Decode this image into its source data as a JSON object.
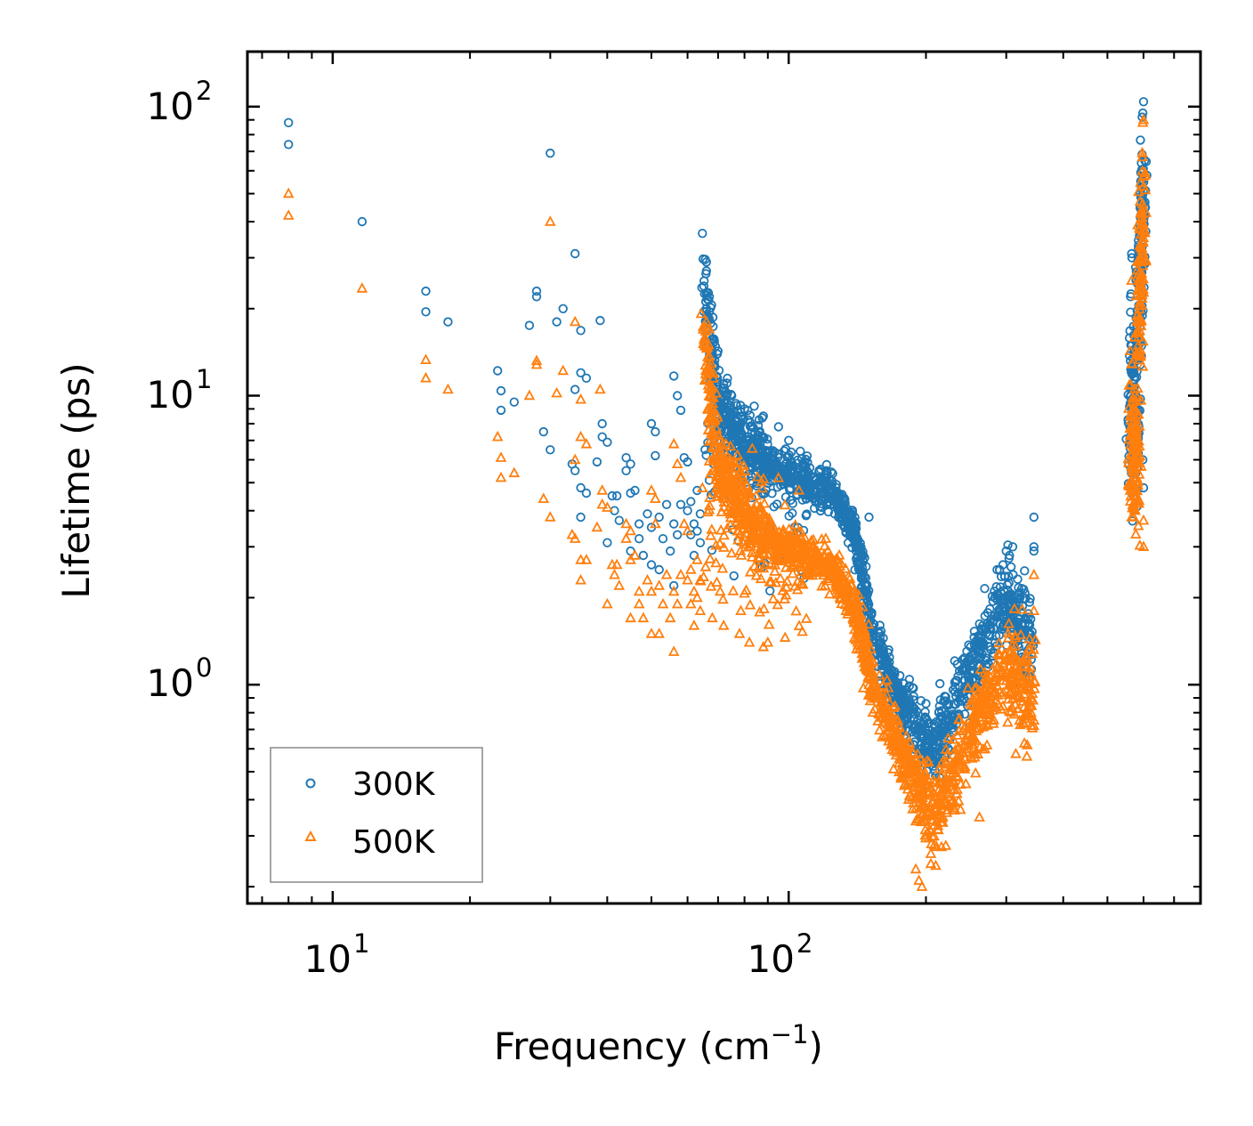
{
  "chart_data": {
    "type": "scatter",
    "xscale": "log",
    "yscale": "log",
    "xlim": [
      6.5,
      800
    ],
    "ylim": [
      0.175,
      155
    ],
    "xlabel": "Frequency (cm",
    "xlabel_sup": "−1",
    "xlabel_end": ")",
    "ylabel": "Lifetime (ps)",
    "x_ticks": [
      {
        "base": "10",
        "exp": "1",
        "value": 10
      },
      {
        "base": "10",
        "exp": "2",
        "value": 100
      }
    ],
    "y_ticks": [
      {
        "base": "10",
        "exp": "0",
        "value": 1
      },
      {
        "base": "10",
        "exp": "1",
        "value": 10
      },
      {
        "base": "10",
        "exp": "2",
        "value": 100
      }
    ],
    "legend_position": "lower-left",
    "series": [
      {
        "name": "300K",
        "marker": "circle",
        "color": "#1f77b4",
        "points": [
          [
            8,
            88
          ],
          [
            8,
            74
          ],
          [
            11.6,
            40
          ],
          [
            16,
            23
          ],
          [
            16,
            19.5
          ],
          [
            17.9,
            18
          ],
          [
            23,
            12.2
          ],
          [
            23.4,
            10.4
          ],
          [
            23.4,
            8.9
          ],
          [
            25,
            9.5
          ],
          [
            27,
            17.5
          ],
          [
            28,
            23
          ],
          [
            28,
            22
          ],
          [
            29,
            7.5
          ],
          [
            30,
            6.5
          ],
          [
            30,
            69
          ],
          [
            31,
            18
          ],
          [
            32,
            20
          ],
          [
            33.5,
            5.8
          ],
          [
            34,
            31
          ],
          [
            34,
            10.5
          ],
          [
            34,
            5.5
          ],
          [
            35,
            16.8
          ],
          [
            35,
            12
          ],
          [
            35,
            4.8
          ],
          [
            35,
            3.8
          ],
          [
            36,
            11.5
          ],
          [
            36,
            4.6
          ],
          [
            38,
            5.9
          ],
          [
            38.6,
            18.2
          ],
          [
            39,
            8
          ],
          [
            39,
            7.2
          ],
          [
            40,
            3.1
          ],
          [
            40,
            6.9
          ],
          [
            41,
            4.5
          ],
          [
            41.5,
            4
          ],
          [
            42,
            4.5
          ],
          [
            42.5,
            3.7
          ],
          [
            44,
            6.1
          ],
          [
            44,
            5.5
          ],
          [
            45,
            5.8
          ],
          [
            45,
            2.9
          ],
          [
            45,
            4.6
          ],
          [
            46,
            4.7
          ],
          [
            47,
            3.6
          ],
          [
            47,
            3.2
          ],
          [
            48,
            2.8
          ],
          [
            49,
            3.9
          ],
          [
            50,
            8
          ],
          [
            50,
            3.5
          ],
          [
            50,
            2.6
          ],
          [
            51,
            7.5
          ],
          [
            51,
            6.2
          ],
          [
            52,
            3.8
          ],
          [
            52,
            2.5
          ],
          [
            53,
            3.2
          ],
          [
            54,
            4.2
          ],
          [
            55,
            2.9
          ],
          [
            56,
            3.6
          ],
          [
            56,
            2.2
          ],
          [
            56,
            11.7
          ],
          [
            57,
            10
          ],
          [
            57,
            3.3
          ],
          [
            58,
            8.9
          ],
          [
            58,
            4.2
          ],
          [
            59,
            6.1
          ],
          [
            60,
            5.9
          ],
          [
            60,
            4
          ],
          [
            61,
            4.3
          ],
          [
            61,
            3.3
          ],
          [
            62,
            3.6
          ],
          [
            62,
            2.8
          ],
          [
            63,
            4.7
          ],
          [
            63,
            3.4
          ],
          [
            64,
            3.9
          ],
          [
            64,
            3.1
          ]
        ],
        "branches": [
          {
            "x0": 65,
            "x1": 70,
            "y0": 26,
            "y1": 8.8,
            "n": 90,
            "spread": 0.28
          },
          {
            "x0": 70,
            "x1": 90,
            "y0": 8.8,
            "y1": 5.8,
            "n": 260,
            "spread": 0.22
          },
          {
            "x0": 90,
            "x1": 125,
            "y0": 5.8,
            "y1": 4.6,
            "n": 240,
            "spread": 0.14
          },
          {
            "x0": 125,
            "x1": 140,
            "y0": 4.6,
            "y1": 3.3,
            "n": 110,
            "spread": 0.12
          },
          {
            "x0": 140,
            "x1": 152,
            "y0": 3.3,
            "y1": 1.5,
            "n": 110,
            "spread": 0.14
          },
          {
            "x0": 152,
            "x1": 178,
            "y0": 1.5,
            "y1": 0.82,
            "n": 140,
            "spread": 0.16
          },
          {
            "x0": 178,
            "x1": 208,
            "y0": 0.82,
            "y1": 0.58,
            "n": 140,
            "spread": 0.22
          },
          {
            "x0": 208,
            "x1": 245,
            "y0": 0.58,
            "y1": 1.05,
            "n": 130,
            "spread": 0.26
          },
          {
            "x0": 245,
            "x1": 300,
            "y0": 1.05,
            "y1": 2.0,
            "n": 160,
            "spread": 0.24
          },
          {
            "x0": 300,
            "x1": 345,
            "y0": 2.0,
            "y1": 1.4,
            "n": 130,
            "spread": 0.3
          },
          {
            "x0": 65,
            "x1": 110,
            "y0": 6.5,
            "y1": 3.6,
            "n": 90,
            "spread": 0.55
          },
          {
            "x0": 560,
            "x1": 585,
            "y0": 9,
            "y1": 9,
            "n": 140,
            "spread": 0.55
          },
          {
            "x0": 585,
            "x1": 600,
            "y0": 18,
            "y1": 55,
            "n": 110,
            "spread": 0.35
          }
        ],
        "extra_points": [
          [
            150,
            3.8
          ],
          [
            345,
            2.9
          ],
          [
            345,
            3.0
          ],
          [
            345,
            3.8
          ],
          [
            300,
            2.9
          ],
          [
            305,
            2.8
          ],
          [
            310,
            3.0
          ],
          [
            290,
            2.5
          ],
          [
            295,
            2.6
          ],
          [
            195,
            0.88
          ],
          [
            200,
            0.86
          ],
          [
            600,
            104
          ],
          [
            598,
            95
          ],
          [
            596,
            92
          ],
          [
            600,
            4.8
          ],
          [
            565,
            31
          ],
          [
            566,
            30
          ],
          [
            562,
            22
          ],
          [
            563,
            22.5
          ],
          [
            598,
            6
          ],
          [
            72,
            11
          ],
          [
            75,
            10
          ],
          [
            80,
            9
          ],
          [
            84,
            9.2
          ],
          [
            88,
            8.5
          ],
          [
            95,
            7.8
          ],
          [
            100,
            7
          ],
          [
            66,
            29
          ],
          [
            66,
            27
          ],
          [
            67,
            22
          ]
        ]
      },
      {
        "name": "500K",
        "marker": "triangle",
        "color": "#ff7f0e",
        "points": [
          [
            8,
            50
          ],
          [
            8,
            42
          ],
          [
            11.6,
            23.5
          ],
          [
            16,
            13.3
          ],
          [
            16,
            11.5
          ],
          [
            17.9,
            10.5
          ],
          [
            23,
            7.2
          ],
          [
            23.4,
            6.1
          ],
          [
            23.4,
            5.2
          ],
          [
            25,
            5.4
          ],
          [
            27,
            10
          ],
          [
            28,
            13.2
          ],
          [
            28,
            12.8
          ],
          [
            29,
            4.4
          ],
          [
            30,
            3.8
          ],
          [
            30,
            40
          ],
          [
            31,
            10.2
          ],
          [
            32,
            12.2
          ],
          [
            33.5,
            3.3
          ],
          [
            34,
            18
          ],
          [
            34,
            6
          ],
          [
            34,
            3.2
          ],
          [
            35,
            9.7
          ],
          [
            35,
            7.2
          ],
          [
            35,
            2.7
          ],
          [
            35,
            2.3
          ],
          [
            36,
            6.8
          ],
          [
            36,
            2.7
          ],
          [
            38,
            3.5
          ],
          [
            38.6,
            10.5
          ],
          [
            39,
            4.7
          ],
          [
            39,
            4.2
          ],
          [
            40,
            1.9
          ],
          [
            40,
            4.1
          ],
          [
            41,
            2.6
          ],
          [
            41.5,
            2.4
          ],
          [
            42,
            2.6
          ],
          [
            42.5,
            2.2
          ],
          [
            44,
            3.6
          ],
          [
            44,
            3.2
          ],
          [
            45,
            3.4
          ],
          [
            45,
            1.7
          ],
          [
            45,
            2.7
          ],
          [
            46,
            2.8
          ],
          [
            47,
            2.1
          ],
          [
            47,
            1.9
          ],
          [
            48,
            1.7
          ],
          [
            49,
            2.3
          ],
          [
            50,
            4.7
          ],
          [
            50,
            2.1
          ],
          [
            50,
            1.5
          ],
          [
            51,
            4.4
          ],
          [
            51,
            3.6
          ],
          [
            52,
            2.2
          ],
          [
            52,
            1.5
          ],
          [
            53,
            1.9
          ],
          [
            54,
            2.4
          ],
          [
            55,
            1.7
          ],
          [
            56,
            2.1
          ],
          [
            56,
            1.3
          ],
          [
            56,
            6.8
          ],
          [
            57,
            5.8
          ],
          [
            57,
            1.9
          ],
          [
            58,
            5.2
          ],
          [
            58,
            2.4
          ],
          [
            59,
            3.6
          ],
          [
            60,
            3.4
          ],
          [
            60,
            2.3
          ],
          [
            61,
            2.5
          ],
          [
            61,
            1.9
          ],
          [
            62,
            2.1
          ],
          [
            62,
            1.6
          ],
          [
            63,
            2.7
          ],
          [
            63,
            2.0
          ],
          [
            64,
            2.3
          ],
          [
            64,
            1.8
          ],
          [
            68,
            1.7
          ],
          [
            72,
            1.6
          ],
          [
            78,
            1.5
          ],
          [
            82,
            1.4
          ],
          [
            88,
            1.35
          ],
          [
            90,
            1.4
          ]
        ],
        "branches": [
          {
            "x0": 65,
            "x1": 70,
            "y0": 16,
            "y1": 5.5,
            "n": 90,
            "spread": 0.3
          },
          {
            "x0": 70,
            "x1": 90,
            "y0": 5.5,
            "y1": 3.2,
            "n": 260,
            "spread": 0.24
          },
          {
            "x0": 90,
            "x1": 125,
            "y0": 3.2,
            "y1": 2.5,
            "n": 240,
            "spread": 0.15
          },
          {
            "x0": 125,
            "x1": 140,
            "y0": 2.5,
            "y1": 1.8,
            "n": 110,
            "spread": 0.14
          },
          {
            "x0": 140,
            "x1": 152,
            "y0": 1.8,
            "y1": 1.0,
            "n": 110,
            "spread": 0.16
          },
          {
            "x0": 152,
            "x1": 178,
            "y0": 1.0,
            "y1": 0.56,
            "n": 140,
            "spread": 0.18
          },
          {
            "x0": 178,
            "x1": 208,
            "y0": 0.56,
            "y1": 0.35,
            "n": 140,
            "spread": 0.24
          },
          {
            "x0": 208,
            "x1": 245,
            "y0": 0.35,
            "y1": 0.62,
            "n": 130,
            "spread": 0.3
          },
          {
            "x0": 245,
            "x1": 300,
            "y0": 0.62,
            "y1": 1.2,
            "n": 160,
            "spread": 0.28
          },
          {
            "x0": 300,
            "x1": 345,
            "y0": 1.2,
            "y1": 0.85,
            "n": 130,
            "spread": 0.34
          },
          {
            "x0": 65,
            "x1": 110,
            "y0": 3.8,
            "y1": 2.2,
            "n": 90,
            "spread": 0.55
          },
          {
            "x0": 560,
            "x1": 585,
            "y0": 6.5,
            "y1": 6.5,
            "n": 140,
            "spread": 0.5
          },
          {
            "x0": 585,
            "x1": 600,
            "y0": 14,
            "y1": 50,
            "n": 110,
            "spread": 0.4
          }
        ],
        "extra_points": [
          [
            345,
            2.4
          ],
          [
            345,
            1.8
          ],
          [
            600,
            90
          ],
          [
            598,
            88
          ],
          [
            600,
            3.0
          ],
          [
            600,
            3.7
          ],
          [
            565,
            25
          ],
          [
            563,
            8.5
          ],
          [
            345,
            0.72
          ],
          [
            340,
            0.8
          ],
          [
            196,
            0.2
          ],
          [
            193,
            0.21
          ],
          [
            205,
            0.24
          ],
          [
            190,
            0.23
          ],
          [
            205,
            0.26
          ],
          [
            66,
            18
          ],
          [
            67,
            17
          ]
        ]
      }
    ]
  }
}
